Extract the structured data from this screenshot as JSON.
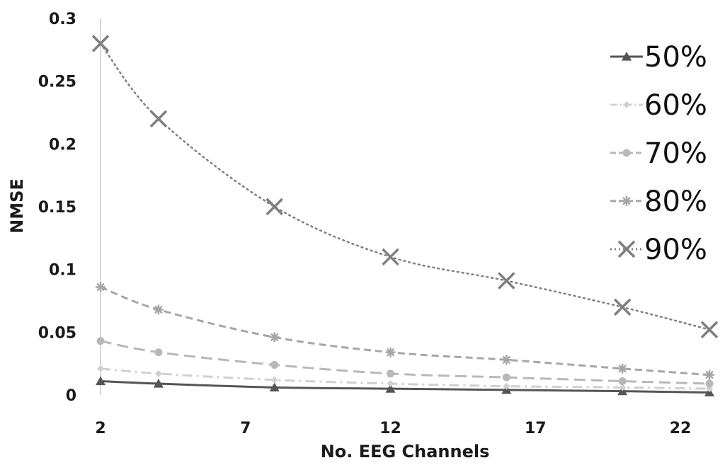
{
  "chart_data": {
    "type": "line",
    "title": "",
    "xlabel": "No. EEG Channels",
    "ylabel": "NMSE",
    "xlim": [
      2,
      23
    ],
    "ylim": [
      0,
      0.3
    ],
    "x_ticks": [
      2,
      7,
      12,
      17,
      22
    ],
    "x_tick_labels": [
      "2",
      "7",
      "12",
      "17",
      "22"
    ],
    "y_ticks": [
      0,
      0.05,
      0.1,
      0.15,
      0.2,
      0.25,
      0.3
    ],
    "y_tick_labels": [
      "0",
      "0.05",
      "0.1",
      "0.15",
      "0.2",
      "0.25",
      "0.3"
    ],
    "grid": false,
    "legend_position": "right",
    "x": [
      2,
      4,
      8,
      12,
      16,
      20,
      23
    ],
    "series": [
      {
        "name": "50%",
        "values": [
          0.011,
          0.009,
          0.006,
          0.005,
          0.004,
          0.003,
          0.002
        ],
        "color": "#555555",
        "dash": "solid",
        "marker": "triangle"
      },
      {
        "name": "60%",
        "values": [
          0.021,
          0.017,
          0.012,
          0.009,
          0.007,
          0.006,
          0.005
        ],
        "color": "#d0d0d0",
        "dash": "dashdot",
        "marker": "diamond"
      },
      {
        "name": "70%",
        "values": [
          0.043,
          0.034,
          0.024,
          0.017,
          0.014,
          0.011,
          0.009
        ],
        "color": "#b8b8b8",
        "dash": "longdash",
        "marker": "circle"
      },
      {
        "name": "80%",
        "values": [
          0.086,
          0.068,
          0.046,
          0.034,
          0.028,
          0.021,
          0.016
        ],
        "color": "#a6a6a6",
        "dash": "dash",
        "marker": "star"
      },
      {
        "name": "90%",
        "values": [
          0.28,
          0.22,
          0.15,
          0.11,
          0.091,
          0.07,
          0.052
        ],
        "color": "#7f7f7f",
        "dash": "dot",
        "marker": "x"
      }
    ]
  }
}
